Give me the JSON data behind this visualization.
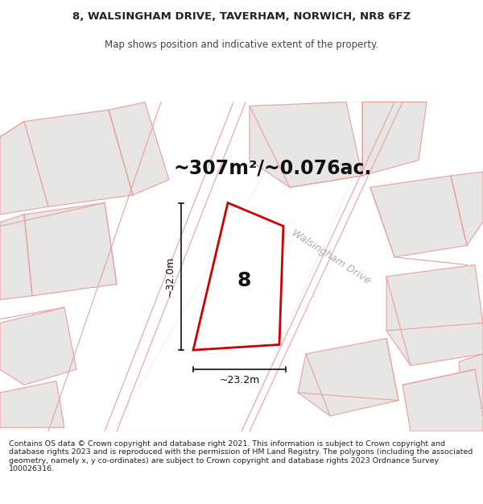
{
  "title_line1": "8, WALSINGHAM DRIVE, TAVERHAM, NORWICH, NR8 6FZ",
  "title_line2": "Map shows position and indicative extent of the property.",
  "area_text": "~307m²/~0.076ac.",
  "road_label": "Walsingham Drive",
  "plot_number": "8",
  "dim_width": "~23.2m",
  "dim_height": "~32.0m",
  "footer_text": "Contains OS data © Crown copyright and database right 2021. This information is subject to Crown copyright and database rights 2023 and is reproduced with the permission of HM Land Registry. The polygons (including the associated geometry, namely x, y co-ordinates) are subject to Crown copyright and database rights 2023 Ordnance Survey 100026316.",
  "map_bg": "#f2f0f0",
  "plot_fill": "#ffffff",
  "plot_edge": "#cc0000",
  "building_fill": "#e8e5e5",
  "building_edge": "#e8a0a0",
  "road_fill": "#fafafa",
  "dim_line_color": "#111111",
  "area_text_color": "#111111",
  "plot_label_color": "#111111",
  "road_label_color": "#aaaaaa",
  "title_color": "#222222",
  "subtitle_color": "#444444",
  "footer_color": "#222222"
}
